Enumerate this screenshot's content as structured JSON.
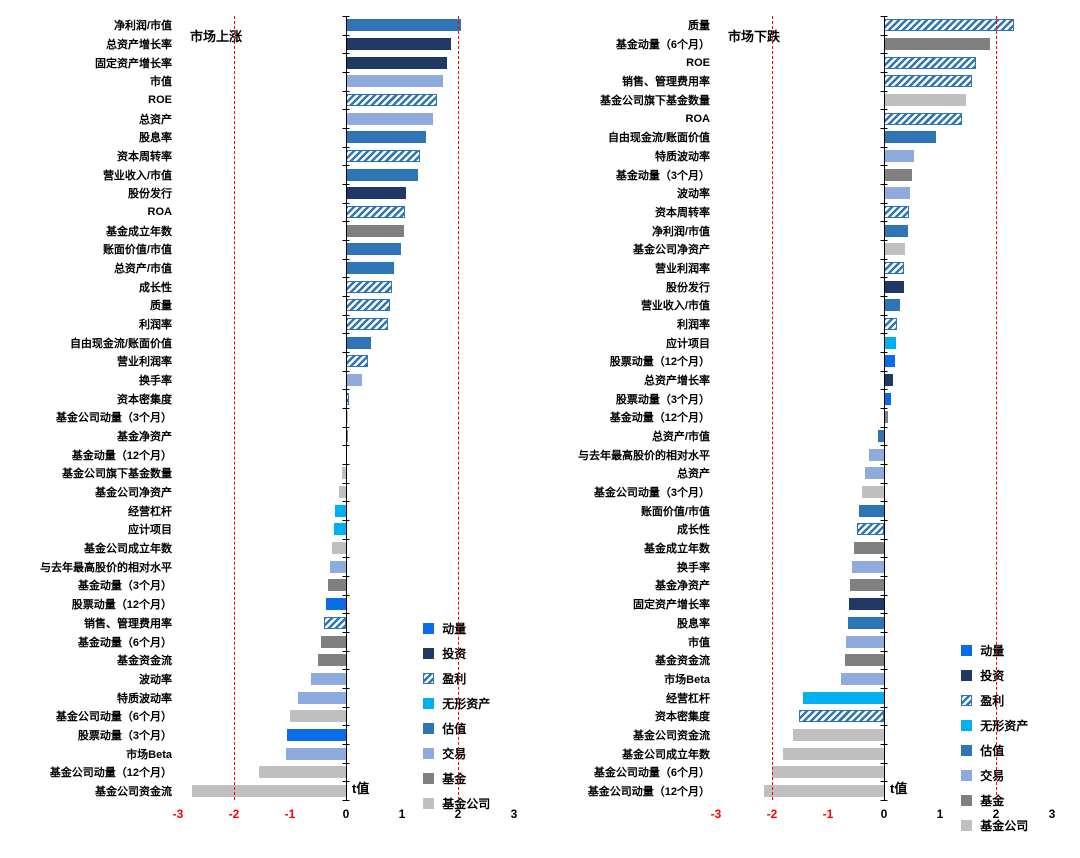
{
  "page": {
    "background": "#FFFFFF"
  },
  "axis": {
    "min": -3,
    "max": 3,
    "ticks": [
      -3,
      -2,
      -1,
      0,
      1,
      2,
      3
    ],
    "negative_tick_color": "#FF0000",
    "positive_tick_color": "#000000",
    "ref_lines": [
      -2,
      2
    ],
    "ref_line_color": "#FF0000",
    "axis_label": "t值"
  },
  "categories": {
    "momentum": {
      "label": "动量",
      "color": "#0A6CE8",
      "pattern": "solid"
    },
    "investment": {
      "label": "投资",
      "color": "#1F3864",
      "pattern": "solid"
    },
    "profitability": {
      "label": "盈利",
      "color": "#2E75B6",
      "pattern": "hatch"
    },
    "intangibles": {
      "label": "无形资产",
      "color": "#00B0F0",
      "pattern": "solid"
    },
    "valuation": {
      "label": "估值",
      "color": "#2E75B6",
      "pattern": "solid"
    },
    "trading": {
      "label": "交易",
      "color": "#8FAADC",
      "pattern": "solid"
    },
    "fund": {
      "label": "基金",
      "color": "#808080",
      "pattern": "solid"
    },
    "fund_company": {
      "label": "基金公司",
      "color": "#BFBFBF",
      "pattern": "solid"
    }
  },
  "legend_order": [
    "momentum",
    "investment",
    "profitability",
    "intangibles",
    "valuation",
    "trading",
    "fund",
    "fund_company"
  ],
  "chart_data": [
    {
      "type": "bar",
      "orientation": "horizontal",
      "title": "市场上涨",
      "xlabel": "t值",
      "xlim": [
        -3,
        3
      ],
      "legend_position": "inside-right",
      "bars": [
        {
          "label": "净利润/市值",
          "value": 2.05,
          "category": "valuation"
        },
        {
          "label": "总资产增长率",
          "value": 1.87,
          "category": "investment"
        },
        {
          "label": "固定资产增长率",
          "value": 1.8,
          "category": "investment"
        },
        {
          "label": "市值",
          "value": 1.73,
          "category": "trading"
        },
        {
          "label": "ROE",
          "value": 1.62,
          "category": "profitability"
        },
        {
          "label": "总资产",
          "value": 1.55,
          "category": "trading"
        },
        {
          "label": "股息率",
          "value": 1.42,
          "category": "valuation"
        },
        {
          "label": "资本周转率",
          "value": 1.33,
          "category": "profitability"
        },
        {
          "label": "营业收入/市值",
          "value": 1.28,
          "category": "valuation"
        },
        {
          "label": "股份发行",
          "value": 1.08,
          "category": "investment"
        },
        {
          "label": "ROA",
          "value": 1.05,
          "category": "profitability"
        },
        {
          "label": "基金成立年数",
          "value": 1.03,
          "category": "fund"
        },
        {
          "label": "账面价值/市值",
          "value": 0.98,
          "category": "valuation"
        },
        {
          "label": "总资产/市值",
          "value": 0.85,
          "category": "valuation"
        },
        {
          "label": "成长性",
          "value": 0.82,
          "category": "profitability"
        },
        {
          "label": "质量",
          "value": 0.78,
          "category": "profitability"
        },
        {
          "label": "利润率",
          "value": 0.75,
          "category": "profitability"
        },
        {
          "label": "自由现金流/账面价值",
          "value": 0.45,
          "category": "valuation"
        },
        {
          "label": "营业利润率",
          "value": 0.4,
          "category": "profitability"
        },
        {
          "label": "换手率",
          "value": 0.28,
          "category": "trading"
        },
        {
          "label": "资本密集度",
          "value": 0.05,
          "category": "profitability"
        },
        {
          "label": "基金公司动量（3个月）",
          "value": 0.04,
          "category": "fund_company"
        },
        {
          "label": "基金净资产",
          "value": 0.03,
          "category": "fund"
        },
        {
          "label": "基金动量（12个月）",
          "value": 0.02,
          "category": "fund"
        },
        {
          "label": "基金公司旗下基金数量",
          "value": -0.08,
          "category": "fund_company"
        },
        {
          "label": "基金公司净资产",
          "value": -0.12,
          "category": "fund_company"
        },
        {
          "label": "经营杠杆",
          "value": -0.2,
          "category": "intangibles"
        },
        {
          "label": "应计项目",
          "value": -0.22,
          "category": "intangibles"
        },
        {
          "label": "基金公司成立年数",
          "value": -0.25,
          "category": "fund_company"
        },
        {
          "label": "与去年最高股价的相对水平",
          "value": -0.28,
          "category": "trading"
        },
        {
          "label": "基金动量（3个月）",
          "value": -0.33,
          "category": "fund"
        },
        {
          "label": "股票动量（12个月）",
          "value": -0.36,
          "category": "momentum"
        },
        {
          "label": "销售、管理费用率",
          "value": -0.4,
          "category": "profitability"
        },
        {
          "label": "基金动量（6个月）",
          "value": -0.44,
          "category": "fund"
        },
        {
          "label": "基金资金流",
          "value": -0.5,
          "category": "fund"
        },
        {
          "label": "波动率",
          "value": -0.62,
          "category": "trading"
        },
        {
          "label": "特质波动率",
          "value": -0.85,
          "category": "trading"
        },
        {
          "label": "基金公司动量（6个月）",
          "value": -1.0,
          "category": "fund_company"
        },
        {
          "label": "股票动量（3个月）",
          "value": -1.05,
          "category": "momentum"
        },
        {
          "label": "市场Beta",
          "value": -1.08,
          "category": "trading"
        },
        {
          "label": "基金公司动量（12个月）",
          "value": -1.55,
          "category": "fund_company"
        },
        {
          "label": "基金公司资金流",
          "value": -2.75,
          "category": "fund_company"
        }
      ]
    },
    {
      "type": "bar",
      "orientation": "horizontal",
      "title": "市场下跌",
      "xlabel": "t值",
      "xlim": [
        -3,
        3
      ],
      "legend_position": "inside-right",
      "bars": [
        {
          "label": "质量",
          "value": 2.32,
          "category": "profitability"
        },
        {
          "label": "基金动量（6个月）",
          "value": 1.9,
          "category": "fund"
        },
        {
          "label": "ROE",
          "value": 1.64,
          "category": "profitability"
        },
        {
          "label": "销售、管理费用率",
          "value": 1.58,
          "category": "profitability"
        },
        {
          "label": "基金公司旗下基金数量",
          "value": 1.46,
          "category": "fund_company"
        },
        {
          "label": "ROA",
          "value": 1.4,
          "category": "profitability"
        },
        {
          "label": "自由现金流/账面价值",
          "value": 0.92,
          "category": "valuation"
        },
        {
          "label": "特质波动率",
          "value": 0.53,
          "category": "trading"
        },
        {
          "label": "基金动量（3个月）",
          "value": 0.5,
          "category": "fund"
        },
        {
          "label": "波动率",
          "value": 0.47,
          "category": "trading"
        },
        {
          "label": "资本周转率",
          "value": 0.45,
          "category": "profitability"
        },
        {
          "label": "净利润/市值",
          "value": 0.43,
          "category": "valuation"
        },
        {
          "label": "基金公司净资产",
          "value": 0.38,
          "category": "fund_company"
        },
        {
          "label": "营业利润率",
          "value": 0.36,
          "category": "profitability"
        },
        {
          "label": "股份发行",
          "value": 0.35,
          "category": "investment"
        },
        {
          "label": "营业收入/市值",
          "value": 0.28,
          "category": "valuation"
        },
        {
          "label": "利润率",
          "value": 0.24,
          "category": "profitability"
        },
        {
          "label": "应计项目",
          "value": 0.22,
          "category": "intangibles"
        },
        {
          "label": "股票动量（12个月）",
          "value": 0.2,
          "category": "momentum"
        },
        {
          "label": "总资产增长率",
          "value": 0.16,
          "category": "investment"
        },
        {
          "label": "股票动量（3个月）",
          "value": 0.13,
          "category": "momentum"
        },
        {
          "label": "基金动量（12个月）",
          "value": 0.08,
          "category": "fund"
        },
        {
          "label": "总资产/市值",
          "value": -0.1,
          "category": "valuation"
        },
        {
          "label": "与去年最高股价的相对水平",
          "value": -0.27,
          "category": "trading"
        },
        {
          "label": "总资产",
          "value": -0.34,
          "category": "trading"
        },
        {
          "label": "基金公司动量（3个月）",
          "value": -0.39,
          "category": "fund_company"
        },
        {
          "label": "账面价值/市值",
          "value": -0.44,
          "category": "valuation"
        },
        {
          "label": "成长性",
          "value": -0.49,
          "category": "profitability"
        },
        {
          "label": "基金成立年数",
          "value": -0.54,
          "category": "fund"
        },
        {
          "label": "换手率",
          "value": -0.58,
          "category": "trading"
        },
        {
          "label": "基金净资产",
          "value": -0.61,
          "category": "fund"
        },
        {
          "label": "固定资产增长率",
          "value": -0.63,
          "category": "investment"
        },
        {
          "label": "股息率",
          "value": -0.65,
          "category": "valuation"
        },
        {
          "label": "市值",
          "value": -0.67,
          "category": "trading"
        },
        {
          "label": "基金资金流",
          "value": -0.7,
          "category": "fund"
        },
        {
          "label": "市场Beta",
          "value": -0.76,
          "category": "trading"
        },
        {
          "label": "经营杠杆",
          "value": -1.45,
          "category": "intangibles"
        },
        {
          "label": "资本密集度",
          "value": -1.52,
          "category": "profitability"
        },
        {
          "label": "基金公司资金流",
          "value": -1.62,
          "category": "fund_company"
        },
        {
          "label": "基金公司成立年数",
          "value": -1.8,
          "category": "fund_company"
        },
        {
          "label": "基金公司动量（6个月）",
          "value": -2.0,
          "category": "fund_company"
        },
        {
          "label": "基金公司动量（12个月）",
          "value": -2.15,
          "category": "fund_company"
        }
      ]
    }
  ]
}
